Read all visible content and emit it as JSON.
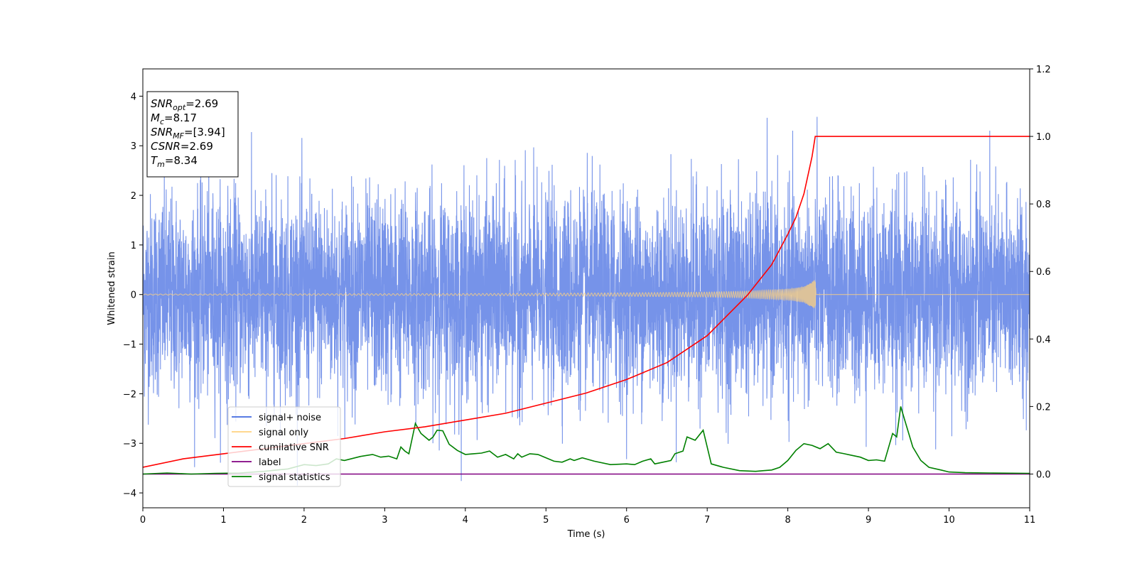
{
  "chart_data": {
    "type": "line",
    "xlabel": "Time (s)",
    "ylabel": "Whitened strain",
    "xlim": [
      0,
      11
    ],
    "ylim": [
      -4.3,
      4.55
    ],
    "y2lim": [
      -0.1,
      1.2
    ],
    "x_ticks": [
      "0",
      "1",
      "2",
      "3",
      "4",
      "5",
      "6",
      "7",
      "8",
      "9",
      "10",
      "11"
    ],
    "y_ticks": [
      "−4",
      "−3",
      "−2",
      "−1",
      "0",
      "1",
      "2",
      "3",
      "4"
    ],
    "y2_ticks": [
      "0.0",
      "0.2",
      "0.4",
      "0.6",
      "0.8",
      "1.0",
      "1.2"
    ],
    "annotation": {
      "lines": [
        {
          "base": "SNR",
          "sub": "opt",
          "value": "=2.69"
        },
        {
          "base": "M",
          "sub": "c",
          "value": "=8.17"
        },
        {
          "base": "SNR",
          "sub": "MF",
          "value": "=[3.94]"
        },
        {
          "base": "CSNR",
          "sub": "",
          "value": "=2.69"
        },
        {
          "base": "T",
          "sub": "m",
          "value": "=8.34"
        }
      ]
    },
    "legend": {
      "position": "lower-left",
      "entries": [
        {
          "label": "signal+ noise",
          "color": "#4169e1"
        },
        {
          "label": "signal only",
          "color": "#ffd27f"
        },
        {
          "label": "cumilative SNR",
          "color": "#ff0000"
        },
        {
          "label": "label",
          "color": "#800080"
        },
        {
          "label": "signal statistics",
          "color": "#008000"
        }
      ]
    },
    "series": [
      {
        "name": "signal+ noise",
        "axis": "left",
        "color": "#4169e1",
        "description_stats": {
          "mean": 0,
          "std": 1.0,
          "max_peak": 4.15,
          "min_peak": -3.85
        }
      },
      {
        "name": "signal only",
        "axis": "left",
        "color": "#ffd27f",
        "x_envelope": [
          0,
          2,
          4,
          5,
          6,
          7,
          7.5,
          8,
          8.2,
          8.34,
          8.35,
          11
        ],
        "y_envelope": [
          0.01,
          0.015,
          0.02,
          0.025,
          0.035,
          0.05,
          0.07,
          0.11,
          0.16,
          0.3,
          0,
          0
        ]
      },
      {
        "name": "cumilative SNR",
        "axis": "right",
        "color": "#ff0000",
        "x": [
          0,
          0.5,
          1,
          1.5,
          2,
          2.5,
          3,
          3.5,
          4,
          4.5,
          5,
          5.5,
          6,
          6.5,
          7,
          7.5,
          7.8,
          8.0,
          8.1,
          8.2,
          8.3,
          8.34,
          11
        ],
        "y": [
          0.02,
          0.045,
          0.06,
          0.075,
          0.09,
          0.105,
          0.125,
          0.14,
          0.16,
          0.18,
          0.21,
          0.24,
          0.28,
          0.33,
          0.41,
          0.53,
          0.62,
          0.71,
          0.76,
          0.83,
          0.94,
          1.0,
          1.0
        ]
      },
      {
        "name": "label",
        "axis": "right",
        "color": "#800080",
        "x": [
          0,
          11
        ],
        "y": [
          0,
          0
        ]
      },
      {
        "name": "signal statistics",
        "axis": "right",
        "color": "#008000",
        "x": [
          0,
          0.3,
          0.6,
          0.9,
          1.2,
          1.5,
          1.8,
          2.0,
          2.15,
          2.3,
          2.4,
          2.5,
          2.7,
          2.85,
          2.95,
          3.05,
          3.15,
          3.2,
          3.25,
          3.3,
          3.38,
          3.45,
          3.55,
          3.6,
          3.65,
          3.72,
          3.8,
          3.9,
          4.0,
          4.1,
          4.2,
          4.3,
          4.4,
          4.5,
          4.6,
          4.65,
          4.7,
          4.8,
          4.9,
          5.0,
          5.1,
          5.2,
          5.3,
          5.35,
          5.45,
          5.6,
          5.8,
          6.0,
          6.1,
          6.2,
          6.3,
          6.35,
          6.45,
          6.55,
          6.6,
          6.7,
          6.75,
          6.85,
          6.95,
          7.05,
          7.2,
          7.4,
          7.6,
          7.7,
          7.8,
          7.9,
          8.0,
          8.1,
          8.2,
          8.3,
          8.4,
          8.5,
          8.6,
          8.7,
          8.8,
          8.9,
          9.0,
          9.1,
          9.2,
          9.3,
          9.35,
          9.4,
          9.45,
          9.55,
          9.65,
          9.75,
          9.9,
          10.0,
          10.1,
          10.2,
          10.5,
          11.0
        ],
        "y": [
          0.0,
          0.003,
          0.0,
          0.002,
          0.003,
          0.008,
          0.015,
          0.028,
          0.025,
          0.03,
          0.045,
          0.04,
          0.052,
          0.058,
          0.05,
          0.053,
          0.045,
          0.08,
          0.068,
          0.06,
          0.15,
          0.12,
          0.1,
          0.11,
          0.13,
          0.128,
          0.088,
          0.07,
          0.058,
          0.06,
          0.062,
          0.068,
          0.05,
          0.058,
          0.045,
          0.06,
          0.05,
          0.06,
          0.058,
          0.048,
          0.038,
          0.035,
          0.045,
          0.04,
          0.048,
          0.038,
          0.028,
          0.03,
          0.028,
          0.038,
          0.045,
          0.03,
          0.035,
          0.04,
          0.06,
          0.068,
          0.11,
          0.1,
          0.13,
          0.03,
          0.02,
          0.01,
          0.008,
          0.01,
          0.012,
          0.02,
          0.04,
          0.07,
          0.09,
          0.085,
          0.075,
          0.09,
          0.065,
          0.06,
          0.055,
          0.05,
          0.04,
          0.042,
          0.038,
          0.12,
          0.11,
          0.2,
          0.16,
          0.08,
          0.04,
          0.02,
          0.012,
          0.006,
          0.005,
          0.004,
          0.003,
          0.002
        ]
      }
    ]
  }
}
